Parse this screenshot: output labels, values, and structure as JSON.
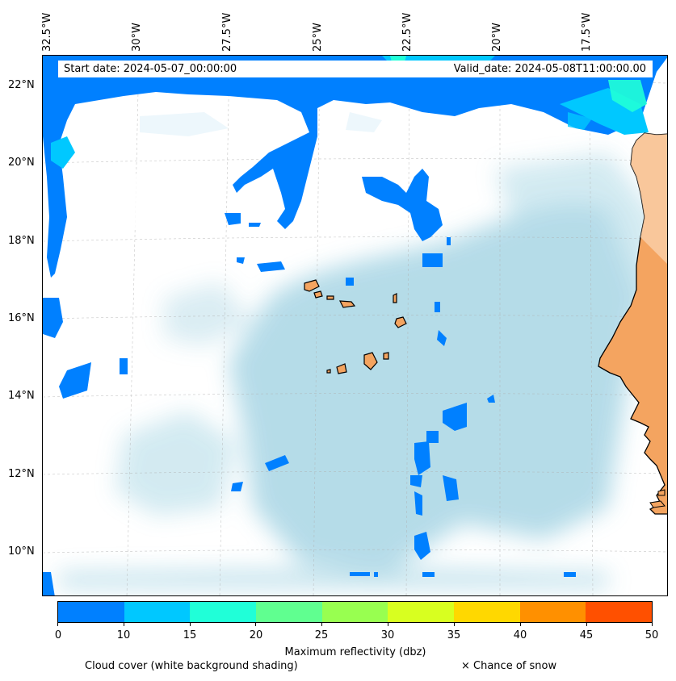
{
  "map": {
    "start_date": "Start date: 2024-05-07_00:00:00",
    "valid_date": "Valid_date: 2024-05-08T11:00:00.00",
    "lon_labels": [
      "32.5°W",
      "30°W",
      "27.5°W",
      "25°W",
      "22.5°W",
      "20°W",
      "17.5°W"
    ],
    "lat_labels": [
      "22°N",
      "20°N",
      "18°N",
      "16°N",
      "14°N",
      "12°N",
      "10°N"
    ],
    "colors": {
      "land": "#f4a460",
      "cloud_light": "#add8e6",
      "reflectivity_low": "#0080ff"
    }
  },
  "colorbar": {
    "title": "Maximum reflectivity (dbz)",
    "ticks": [
      "0",
      "10",
      "15",
      "20",
      "25",
      "30",
      "35",
      "40",
      "45",
      "50"
    ],
    "colors": [
      "#0080ff",
      "#00c8ff",
      "#20ffd8",
      "#60ff90",
      "#98ff50",
      "#d8ff20",
      "#ffd800",
      "#ff9000",
      "#ff5000"
    ]
  },
  "legend": {
    "cloud": "Cloud cover (white background shading)",
    "snow": "× Chance of snow"
  }
}
